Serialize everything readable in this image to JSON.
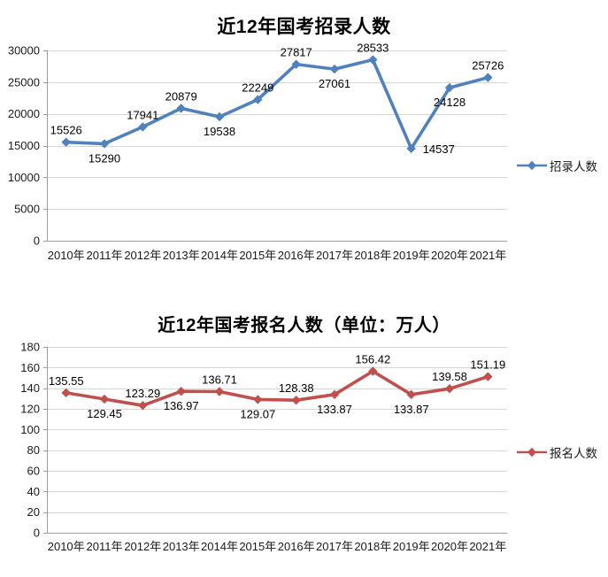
{
  "chart_data": [
    {
      "type": "line",
      "title": "近12年国考招录人数",
      "categories": [
        "2010年",
        "2011年",
        "2012年",
        "2013年",
        "2014年",
        "2015年",
        "2016年",
        "2017年",
        "2018年",
        "2019年",
        "2020年",
        "2021年"
      ],
      "series": [
        {
          "name": "招录人数",
          "color": "#4F81BD",
          "values": [
            15526,
            15290,
            17941,
            20879,
            19538,
            22249,
            27817,
            27061,
            28533,
            14537,
            24128,
            25726
          ]
        }
      ],
      "xlabel": "",
      "ylabel": "",
      "ylim": [
        0,
        30000
      ],
      "ytick_step": 5000,
      "ytick_labels": [
        "0",
        "5000",
        "10000",
        "15000",
        "20000",
        "25000",
        "30000"
      ],
      "grid": true,
      "legend_position": "right",
      "data_labels": true,
      "label_decimals": 0,
      "label_positions": [
        "above",
        "below",
        "above",
        "above",
        "below",
        "above",
        "above",
        "below",
        "above",
        "right",
        "below",
        "above"
      ]
    },
    {
      "type": "line",
      "title": "近12年国考报名人数（单位：万人）",
      "categories": [
        "2010年",
        "2011年",
        "2012年",
        "2013年",
        "2014年",
        "2015年",
        "2016年",
        "2017年",
        "2018年",
        "2019年",
        "2020年",
        "2021年"
      ],
      "series": [
        {
          "name": "报名人数",
          "color": "#C0504D",
          "values": [
            135.55,
            129.45,
            123.29,
            136.97,
            136.71,
            129.07,
            128.38,
            133.87,
            156.42,
            133.87,
            139.58,
            151.19
          ]
        }
      ],
      "xlabel": "",
      "ylabel": "",
      "ylim": [
        0,
        180
      ],
      "ytick_step": 20,
      "ytick_labels": [
        "0",
        "20",
        "40",
        "60",
        "80",
        "100",
        "120",
        "140",
        "160",
        "180"
      ],
      "grid": true,
      "legend_position": "right",
      "data_labels": true,
      "label_decimals": 2,
      "label_positions": [
        "above",
        "below",
        "above",
        "below",
        "above",
        "below",
        "above",
        "below",
        "above",
        "below",
        "above",
        "above"
      ]
    }
  ],
  "style_colors": {
    "series_blue": "#4F81BD",
    "series_red": "#C0504D",
    "gridline": "#D6D6D6",
    "axis_line": "#9C9C9C",
    "text": "#1A1A1A"
  }
}
